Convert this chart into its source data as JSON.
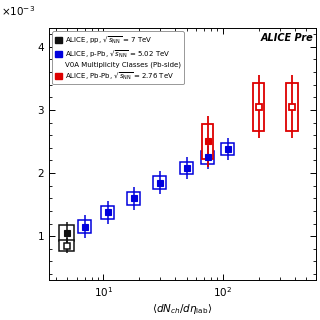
{
  "title": "ALICE Pre",
  "pp_data": {
    "x": [
      5.0
    ],
    "y": [
      0.00105
    ],
    "stat_low": [
      0.0002
    ],
    "stat_high": [
      0.00018
    ],
    "sys_low": [
      0.00013
    ],
    "sys_high": [
      0.00013
    ],
    "color": "#111111",
    "label_line1": "ALICE, pp, ",
    "label_sqrt": "s",
    "label_sub": "NN",
    "label_line1b": " = 7 TeV"
  },
  "pPb_data": {
    "x": [
      7.0,
      11.0,
      18.0,
      30.0,
      50.0,
      75.0,
      110.0
    ],
    "y": [
      0.00115,
      0.00138,
      0.0016,
      0.00185,
      0.00208,
      0.00225,
      0.00238
    ],
    "stat_low": [
      0.00018,
      0.00018,
      0.00018,
      0.00018,
      0.00018,
      0.00018,
      0.00018
    ],
    "stat_high": [
      0.00018,
      0.00018,
      0.00018,
      0.00018,
      0.00018,
      0.00018,
      0.00018
    ],
    "sys_low": [
      0.0001,
      0.0001,
      0.0001,
      0.0001,
      0.0001,
      0.0001,
      0.0001
    ],
    "sys_high": [
      0.0001,
      0.0001,
      0.0001,
      0.0001,
      0.0001,
      0.0001,
      0.0001
    ],
    "color": "#0000dd",
    "label_line1": "ALICE, p-Pb, ",
    "label_sqrt": "s",
    "label_sub": "NN",
    "label_line1b": " = 5.02 TeV",
    "sublabel": "V0A Multiplicity Classes (Pb-side)"
  },
  "PbPb_data": {
    "x": [
      75.0,
      200.0,
      380.0
    ],
    "y": [
      0.0025,
      0.00305,
      0.00305
    ],
    "stat_low": [
      0.0004,
      0.0005,
      0.0005
    ],
    "stat_high": [
      0.0004,
      0.0005,
      0.0005
    ],
    "sys_low": [
      0.00028,
      0.00038,
      0.00038
    ],
    "sys_high": [
      0.00028,
      0.00038,
      0.00038
    ],
    "color": "#dd0000",
    "label_line1": "ALICE, Pb-Pb, ",
    "label_sqrt": "s",
    "label_sub": "NN",
    "label_line1b": " = 2.76 TeV"
  },
  "xlim": [
    3.5,
    600
  ],
  "ylim": [
    0.0003,
    0.0043
  ],
  "yticks": [
    0.001,
    0.002,
    0.003,
    0.004
  ],
  "ytick_labels": [
    "1",
    "2",
    "3",
    "4"
  ],
  "background_color": "#ffffff"
}
